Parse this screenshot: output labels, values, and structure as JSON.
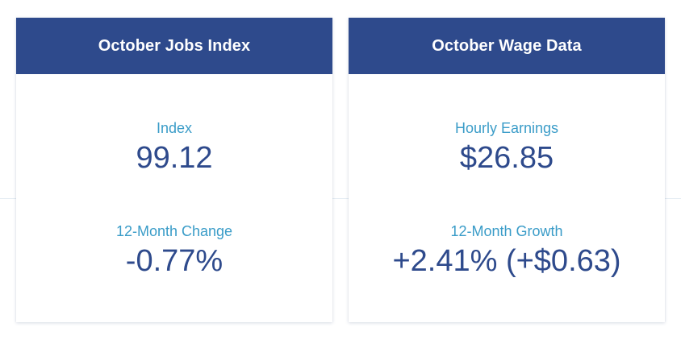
{
  "cards": [
    {
      "title": "October Jobs Index",
      "stats": [
        {
          "label": "Index",
          "value": "99.12"
        },
        {
          "label": "12-Month Change",
          "value": "-0.77%"
        }
      ]
    },
    {
      "title": "October Wage Data",
      "stats": [
        {
          "label": "Hourly Earnings",
          "value": "$26.85"
        },
        {
          "label": "12-Month Growth",
          "value": "+2.41% (+$0.63)"
        }
      ]
    }
  ],
  "colors": {
    "header_bg": "#2e4a8c",
    "header_text": "#ffffff",
    "label": "#3a9cc8",
    "value": "#2e4a8c"
  }
}
